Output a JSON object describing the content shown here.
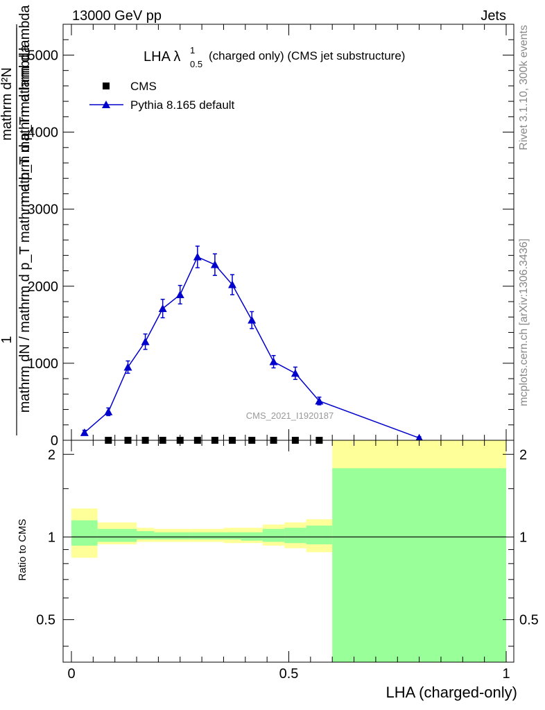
{
  "header": {
    "energy_label": "13000 GeV pp",
    "process_label": "Jets"
  },
  "side_labels": {
    "rivet": "Rivet 3.1.10,  300k events",
    "mcplots": "mcplots.cern.ch [arXiv:1306.3436]"
  },
  "chart_data": [
    {
      "type": "line",
      "title_main": "LHA λ",
      "title_sup": "1",
      "title_sub": "0.5",
      "title_rest": "(charged only) (CMS jet substructure)",
      "ylabel_numerator": "1",
      "ylabel_denominator": "mathrm dN / mathrm d p_T mathrm d p_T mathrm d lambda",
      "ylabel_numerator_full": "mathrm d²N",
      "ylabel_lines": [
        "mathrm d²N",
        "mathrm d p_T mathrm d lambda"
      ],
      "xlim": [
        0,
        1
      ],
      "ylim": [
        0,
        5400
      ],
      "yticks": [
        0,
        1000,
        2000,
        3000,
        4000,
        5000
      ],
      "ytick_labels": [
        "0",
        "1000",
        "2000",
        "3000",
        "4000",
        "5000"
      ],
      "watermark": "CMS_2021_I1920187",
      "legend": [
        {
          "name": "CMS",
          "marker": "square",
          "color": "#000000"
        },
        {
          "name": "Pythia 8.165 default",
          "marker": "triangle",
          "color": "#0000cc"
        }
      ],
      "series": [
        {
          "name": "CMS",
          "x": [
            0.085,
            0.13,
            0.17,
            0.21,
            0.25,
            0.29,
            0.33,
            0.37,
            0.415,
            0.465,
            0.515,
            0.57
          ],
          "y": [
            0,
            0,
            0,
            0,
            0,
            0,
            0,
            0,
            0,
            0,
            0,
            0
          ]
        },
        {
          "name": "Pythia 8.165 default",
          "x": [
            0.03,
            0.085,
            0.13,
            0.17,
            0.21,
            0.25,
            0.29,
            0.33,
            0.37,
            0.415,
            0.465,
            0.515,
            0.57,
            0.8
          ],
          "y": [
            100,
            370,
            950,
            1280,
            1710,
            1890,
            2380,
            2280,
            2020,
            1560,
            1020,
            870,
            510,
            30
          ],
          "yerr": [
            30,
            50,
            80,
            100,
            120,
            120,
            140,
            140,
            130,
            110,
            80,
            80,
            50,
            15
          ]
        }
      ]
    },
    {
      "type": "area",
      "ylabel": "Ratio to CMS",
      "xlabel": "LHA (charged-only)",
      "xlim": [
        0,
        1
      ],
      "ylim": [
        0.35,
        2.25
      ],
      "yticks": [
        0.5,
        1,
        2
      ],
      "ytick_labels": [
        "0.5",
        "1",
        "2"
      ],
      "xticks": [
        0,
        0.5,
        1
      ],
      "xtick_labels": [
        "0",
        "0.5",
        "1"
      ],
      "reference_line": 1,
      "bins": [
        {
          "lo": 0.0,
          "hi": 0.06,
          "yellow": [
            0.84,
            1.27
          ],
          "green": [
            0.93,
            1.15
          ]
        },
        {
          "lo": 0.06,
          "hi": 0.15,
          "yellow": [
            0.94,
            1.13
          ],
          "green": [
            0.96,
            1.07
          ]
        },
        {
          "lo": 0.15,
          "hi": 0.19,
          "yellow": [
            0.96,
            1.08
          ],
          "green": [
            0.98,
            1.05
          ]
        },
        {
          "lo": 0.19,
          "hi": 0.27,
          "yellow": [
            0.96,
            1.07
          ],
          "green": [
            0.98,
            1.04
          ]
        },
        {
          "lo": 0.27,
          "hi": 0.35,
          "yellow": [
            0.96,
            1.07
          ],
          "green": [
            0.98,
            1.04
          ]
        },
        {
          "lo": 0.35,
          "hi": 0.39,
          "yellow": [
            0.95,
            1.08
          ],
          "green": [
            0.98,
            1.04
          ]
        },
        {
          "lo": 0.39,
          "hi": 0.44,
          "yellow": [
            0.95,
            1.08
          ],
          "green": [
            0.97,
            1.04
          ]
        },
        {
          "lo": 0.44,
          "hi": 0.49,
          "yellow": [
            0.93,
            1.11
          ],
          "green": [
            0.96,
            1.07
          ]
        },
        {
          "lo": 0.49,
          "hi": 0.54,
          "yellow": [
            0.91,
            1.13
          ],
          "green": [
            0.95,
            1.08
          ]
        },
        {
          "lo": 0.54,
          "hi": 0.6,
          "yellow": [
            0.88,
            1.16
          ],
          "green": [
            0.94,
            1.1
          ]
        },
        {
          "lo": 0.6,
          "hi": 1.0,
          "yellow": [
            0.35,
            2.25
          ],
          "green": [
            0.35,
            1.78
          ]
        }
      ]
    }
  ]
}
